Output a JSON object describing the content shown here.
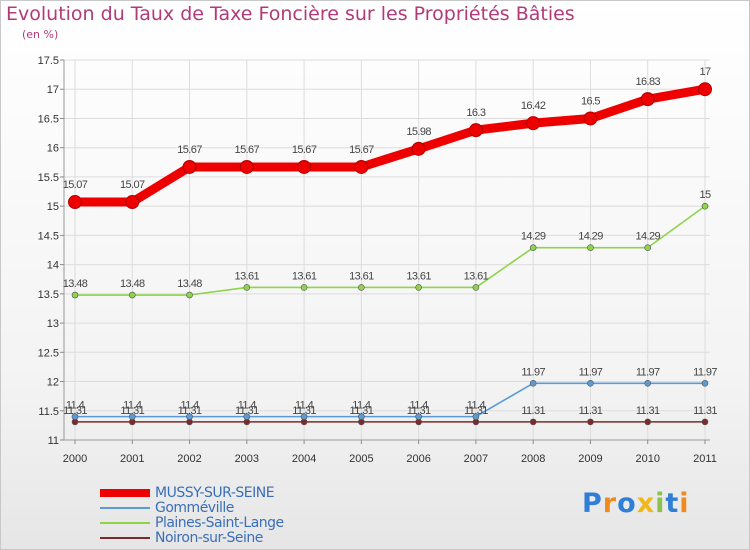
{
  "chart_data": {
    "type": "line",
    "title": "Evolution du Taux de Taxe Foncière sur les Propriétés Bâties",
    "ylabel": "(en %)",
    "xlabel": "",
    "categories": [
      "2000",
      "2001",
      "2002",
      "2003",
      "2004",
      "2005",
      "2006",
      "2007",
      "2008",
      "2009",
      "2010",
      "2011"
    ],
    "ylim": [
      11,
      17.5
    ],
    "yticks": [
      "11",
      "11.5",
      "12",
      "12.5",
      "13",
      "13.5",
      "14",
      "14.5",
      "15",
      "15.5",
      "16",
      "16.5",
      "17",
      "17.5"
    ],
    "series": [
      {
        "name": "MUSSY-SUR-SEINE",
        "color": "#ee0000",
        "values": [
          15.07,
          15.07,
          15.67,
          15.67,
          15.67,
          15.67,
          15.98,
          16.3,
          16.42,
          16.5,
          16.83,
          17
        ],
        "labels": [
          "15.07",
          "15.07",
          "15.67",
          "15.67",
          "15.67",
          "15.67",
          "15.98",
          "16.3",
          "16.42",
          "16.5",
          "16.83",
          "17"
        ]
      },
      {
        "name": "Gomméville",
        "color": "#5b9bd5",
        "values": [
          11.4,
          11.4,
          11.4,
          11.4,
          11.4,
          11.4,
          11.4,
          11.4,
          11.97,
          11.97,
          11.97,
          11.97
        ],
        "labels": [
          "11.4",
          "11.4",
          "11.4",
          "11.4",
          "11.4",
          "11.4",
          "11.4",
          "11.4",
          "11.97",
          "11.97",
          "11.97",
          "11.97"
        ]
      },
      {
        "name": "Plaines-Saint-Lange",
        "color": "#8ed34a",
        "values": [
          13.48,
          13.48,
          13.48,
          13.61,
          13.61,
          13.61,
          13.61,
          13.61,
          14.29,
          14.29,
          14.29,
          15
        ],
        "labels": [
          "13.48",
          "13.48",
          "13.48",
          "13.61",
          "13.61",
          "13.61",
          "13.61",
          "13.61",
          "14.29",
          "14.29",
          "14.29",
          "15"
        ]
      },
      {
        "name": "Noiron-sur-Seine",
        "color": "#7b2b2b",
        "values": [
          11.31,
          11.31,
          11.31,
          11.31,
          11.31,
          11.31,
          11.31,
          11.31,
          11.31,
          11.31,
          11.31,
          11.31
        ],
        "labels": [
          "11.31",
          "11.31",
          "11.31",
          "11.31",
          "11.31",
          "11.31",
          "11.31",
          "11.31",
          "11.31",
          "11.31",
          "11.31",
          "11.31"
        ]
      }
    ],
    "legend_position": "bottom-left"
  },
  "brand": {
    "letters": [
      "P",
      "r",
      "o",
      "x",
      "i",
      "t",
      "i"
    ],
    "colors": [
      "#2f7fd6",
      "#f08a1c",
      "#2f7fd6",
      "#f0b81c",
      "#8bc34a",
      "#2f7fd6",
      "#f08a1c"
    ]
  }
}
